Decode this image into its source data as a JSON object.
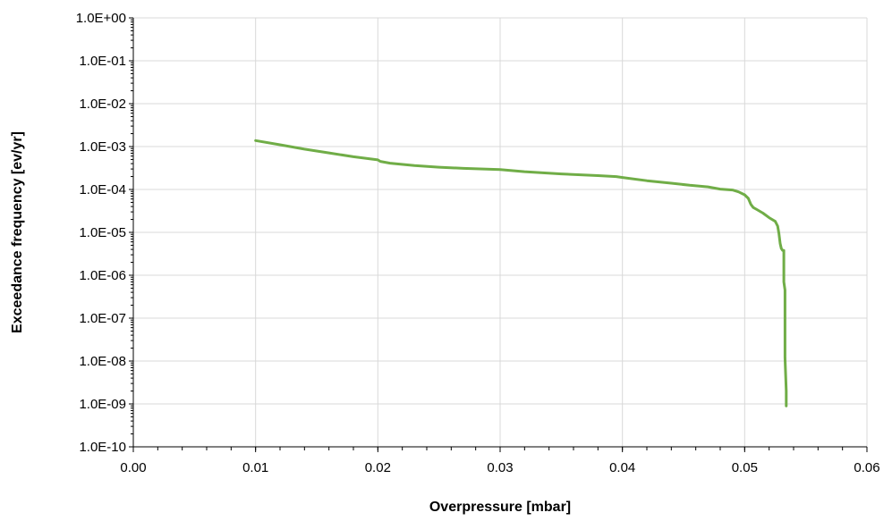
{
  "chart_data": {
    "type": "line",
    "title": "",
    "xlabel": "Overpressure [mbar]",
    "ylabel": "Exceedance frequency [ev/yr]",
    "xlim": [
      0,
      0.06
    ],
    "ylim": [
      1e-10,
      1
    ],
    "yscale": "log",
    "grid": true,
    "legend": "none",
    "x_ticks": [
      0,
      0.01,
      0.02,
      0.03,
      0.04,
      0.05,
      0.06
    ],
    "x_tick_labels": [
      "0.00",
      "0.01",
      "0.02",
      "0.03",
      "0.04",
      "0.05",
      "0.06"
    ],
    "y_ticks": [
      1,
      0.1,
      0.01,
      0.001,
      0.0001,
      1e-05,
      1e-06,
      1e-07,
      1e-08,
      1e-09,
      1e-10
    ],
    "y_tick_labels": [
      "1.0E+00",
      "1.0E-01",
      "1.0E-02",
      "1.0E-03",
      "1.0E-04",
      "1.0E-05",
      "1.0E-06",
      "1.0E-07",
      "1.0E-08",
      "1.0E-09",
      "1.0E-10"
    ],
    "series": [
      {
        "color": "#70ad47",
        "x": [
          0.01,
          0.012,
          0.014,
          0.016,
          0.018,
          0.02,
          0.0202,
          0.021,
          0.023,
          0.025,
          0.027,
          0.03,
          0.032,
          0.035,
          0.038,
          0.0395,
          0.04,
          0.042,
          0.044,
          0.0455,
          0.047,
          0.048,
          0.049,
          0.0495,
          0.05,
          0.0503,
          0.0505,
          0.0507,
          0.051,
          0.0515,
          0.052,
          0.0525,
          0.0527,
          0.0528,
          0.0529,
          0.053,
          0.0531,
          0.0532,
          0.0532,
          0.0533,
          0.0533,
          0.0533,
          0.0534,
          0.0534
        ],
        "y": [
          0.00138,
          0.0011,
          0.00087,
          0.00071,
          0.00058,
          0.00049,
          0.00045,
          0.00041,
          0.00036,
          0.00033,
          0.00031,
          0.00029,
          0.00026,
          0.00023,
          0.00021,
          0.0002,
          0.00019,
          0.00016,
          0.00014,
          0.000125,
          0.000115,
          0.000102,
          9.7e-05,
          8.8e-05,
          7.5e-05,
          6.2e-05,
          4.5e-05,
          3.8e-05,
          3.4e-05,
          2.8e-05,
          2.2e-05,
          1.8e-05,
          1.4e-05,
          9.5e-06,
          5.5e-06,
          4.2e-06,
          3.8e-06,
          3.8e-06,
          7e-07,
          4.5e-07,
          4e-08,
          1.2e-08,
          2e-09,
          9e-10
        ]
      }
    ]
  }
}
